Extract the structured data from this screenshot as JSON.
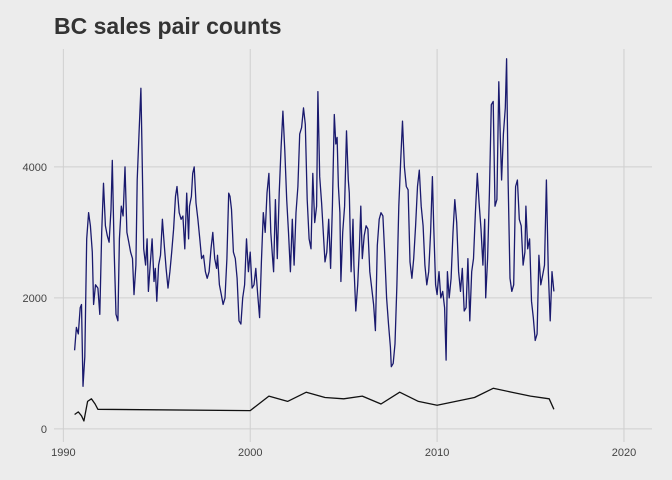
{
  "chart_data": {
    "type": "line",
    "title": "BC sales pair counts",
    "xlabel": "",
    "ylabel": "",
    "xlim": [
      1989.5,
      2021.5
    ],
    "ylim": [
      -200,
      5800
    ],
    "xticks": [
      1990,
      2000,
      2010,
      2020
    ],
    "yticks": [
      0,
      2000,
      4000
    ],
    "xtick_labels": [
      "1990",
      "2000",
      "2010",
      "2020"
    ],
    "ytick_labels": [
      "0",
      "2000",
      "4000"
    ],
    "grid": true,
    "legend": "none",
    "series": [
      {
        "color": "#1a1a6e",
        "points": [
          [
            1990.6,
            1200
          ],
          [
            1990.7,
            1550
          ],
          [
            1990.8,
            1450
          ],
          [
            1990.9,
            1850
          ],
          [
            1990.97,
            1900
          ],
          [
            1991.05,
            650
          ],
          [
            1991.15,
            1100
          ],
          [
            1991.25,
            2900
          ],
          [
            1991.35,
            3300
          ],
          [
            1991.45,
            3100
          ],
          [
            1991.55,
            2700
          ],
          [
            1991.62,
            1900
          ],
          [
            1991.72,
            2200
          ],
          [
            1991.85,
            2150
          ],
          [
            1991.95,
            1750
          ],
          [
            1992.05,
            3000
          ],
          [
            1992.15,
            3750
          ],
          [
            1992.25,
            3100
          ],
          [
            1992.35,
            2950
          ],
          [
            1992.45,
            2850
          ],
          [
            1992.55,
            3350
          ],
          [
            1992.62,
            4100
          ],
          [
            1992.72,
            2700
          ],
          [
            1992.82,
            1750
          ],
          [
            1992.92,
            1650
          ],
          [
            1993.0,
            2900
          ],
          [
            1993.1,
            3400
          ],
          [
            1993.2,
            3250
          ],
          [
            1993.3,
            4000
          ],
          [
            1993.4,
            3000
          ],
          [
            1993.5,
            2850
          ],
          [
            1993.6,
            2700
          ],
          [
            1993.7,
            2600
          ],
          [
            1993.78,
            2050
          ],
          [
            1993.88,
            2500
          ],
          [
            1993.95,
            3800
          ],
          [
            1994.05,
            4500
          ],
          [
            1994.15,
            5200
          ],
          [
            1994.2,
            4450
          ],
          [
            1994.3,
            2750
          ],
          [
            1994.4,
            2500
          ],
          [
            1994.48,
            2900
          ],
          [
            1994.55,
            2100
          ],
          [
            1994.65,
            2500
          ],
          [
            1994.75,
            2900
          ],
          [
            1994.85,
            2250
          ],
          [
            1994.92,
            2450
          ],
          [
            1995.0,
            1950
          ],
          [
            1995.1,
            2500
          ],
          [
            1995.2,
            2650
          ],
          [
            1995.3,
            3200
          ],
          [
            1995.4,
            2800
          ],
          [
            1995.5,
            2450
          ],
          [
            1995.6,
            2150
          ],
          [
            1995.7,
            2400
          ],
          [
            1995.8,
            2700
          ],
          [
            1995.9,
            3050
          ],
          [
            1996.0,
            3550
          ],
          [
            1996.08,
            3700
          ],
          [
            1996.2,
            3300
          ],
          [
            1996.3,
            3200
          ],
          [
            1996.4,
            3250
          ],
          [
            1996.5,
            2750
          ],
          [
            1996.6,
            3600
          ],
          [
            1996.7,
            2900
          ],
          [
            1996.75,
            3400
          ],
          [
            1996.85,
            3550
          ],
          [
            1996.92,
            3900
          ],
          [
            1997.0,
            4000
          ],
          [
            1997.1,
            3450
          ],
          [
            1997.2,
            3200
          ],
          [
            1997.3,
            2900
          ],
          [
            1997.4,
            2600
          ],
          [
            1997.5,
            2650
          ],
          [
            1997.6,
            2400
          ],
          [
            1997.7,
            2300
          ],
          [
            1997.8,
            2400
          ],
          [
            1997.9,
            2750
          ],
          [
            1998.0,
            3000
          ],
          [
            1998.1,
            2600
          ],
          [
            1998.2,
            2450
          ],
          [
            1998.25,
            2650
          ],
          [
            1998.35,
            2200
          ],
          [
            1998.45,
            2050
          ],
          [
            1998.55,
            1900
          ],
          [
            1998.65,
            2000
          ],
          [
            1998.75,
            2600
          ],
          [
            1998.85,
            3600
          ],
          [
            1998.92,
            3550
          ],
          [
            1999.0,
            3350
          ],
          [
            1999.1,
            2700
          ],
          [
            1999.2,
            2600
          ],
          [
            1999.3,
            2300
          ],
          [
            1999.4,
            1650
          ],
          [
            1999.5,
            1600
          ],
          [
            1999.6,
            2000
          ],
          [
            1999.7,
            2200
          ],
          [
            1999.8,
            2900
          ],
          [
            1999.9,
            2400
          ],
          [
            2000.0,
            2700
          ],
          [
            2000.1,
            2150
          ],
          [
            2000.2,
            2200
          ],
          [
            2000.3,
            2450
          ],
          [
            2000.4,
            2050
          ],
          [
            2000.5,
            1700
          ],
          [
            2000.6,
            2550
          ],
          [
            2000.7,
            3300
          ],
          [
            2000.8,
            3000
          ],
          [
            2000.9,
            3600
          ],
          [
            2001.0,
            3900
          ],
          [
            2001.1,
            3000
          ],
          [
            2001.2,
            2600
          ],
          [
            2001.25,
            2400
          ],
          [
            2001.35,
            3500
          ],
          [
            2001.45,
            2600
          ],
          [
            2001.55,
            3600
          ],
          [
            2001.65,
            4300
          ],
          [
            2001.75,
            4850
          ],
          [
            2001.85,
            4250
          ],
          [
            2001.95,
            3500
          ],
          [
            2002.05,
            3000
          ],
          [
            2002.15,
            2400
          ],
          [
            2002.25,
            3200
          ],
          [
            2002.35,
            2500
          ],
          [
            2002.45,
            3300
          ],
          [
            2002.55,
            3700
          ],
          [
            2002.65,
            4500
          ],
          [
            2002.75,
            4600
          ],
          [
            2002.85,
            4900
          ],
          [
            2002.95,
            4650
          ],
          [
            2003.05,
            3500
          ],
          [
            2003.15,
            2900
          ],
          [
            2003.25,
            2750
          ],
          [
            2003.35,
            3900
          ],
          [
            2003.45,
            3150
          ],
          [
            2003.55,
            3400
          ],
          [
            2003.62,
            5150
          ],
          [
            2003.72,
            3850
          ],
          [
            2003.82,
            3450
          ],
          [
            2003.9,
            3050
          ],
          [
            2004.0,
            2550
          ],
          [
            2004.1,
            2700
          ],
          [
            2004.2,
            3200
          ],
          [
            2004.3,
            2450
          ],
          [
            2004.4,
            3400
          ],
          [
            2004.5,
            4800
          ],
          [
            2004.58,
            4350
          ],
          [
            2004.65,
            4450
          ],
          [
            2004.72,
            3700
          ],
          [
            2004.8,
            3300
          ],
          [
            2004.85,
            2250
          ],
          [
            2004.95,
            3000
          ],
          [
            2005.05,
            3400
          ],
          [
            2005.15,
            4550
          ],
          [
            2005.25,
            3800
          ],
          [
            2005.3,
            3600
          ],
          [
            2005.4,
            2400
          ],
          [
            2005.5,
            3200
          ],
          [
            2005.55,
            2500
          ],
          [
            2005.65,
            1800
          ],
          [
            2005.75,
            2200
          ],
          [
            2005.85,
            2800
          ],
          [
            2005.92,
            3400
          ],
          [
            2006.0,
            2600
          ],
          [
            2006.1,
            2950
          ],
          [
            2006.2,
            3100
          ],
          [
            2006.3,
            3050
          ],
          [
            2006.4,
            2400
          ],
          [
            2006.5,
            2150
          ],
          [
            2006.6,
            1900
          ],
          [
            2006.7,
            1500
          ],
          [
            2006.8,
            2800
          ],
          [
            2006.9,
            3200
          ],
          [
            2007.0,
            3300
          ],
          [
            2007.1,
            3250
          ],
          [
            2007.2,
            2650
          ],
          [
            2007.3,
            2000
          ],
          [
            2007.4,
            1600
          ],
          [
            2007.5,
            1250
          ],
          [
            2007.55,
            950
          ],
          [
            2007.65,
            1000
          ],
          [
            2007.75,
            1300
          ],
          [
            2007.85,
            2200
          ],
          [
            2007.95,
            3400
          ],
          [
            2008.05,
            4100
          ],
          [
            2008.15,
            4700
          ],
          [
            2008.25,
            4000
          ],
          [
            2008.35,
            3700
          ],
          [
            2008.45,
            3650
          ],
          [
            2008.55,
            2550
          ],
          [
            2008.65,
            2300
          ],
          [
            2008.75,
            2600
          ],
          [
            2008.85,
            3100
          ],
          [
            2008.95,
            3700
          ],
          [
            2009.05,
            3950
          ],
          [
            2009.15,
            3400
          ],
          [
            2009.25,
            3100
          ],
          [
            2009.35,
            2500
          ],
          [
            2009.45,
            2200
          ],
          [
            2009.55,
            2400
          ],
          [
            2009.65,
            3000
          ],
          [
            2009.75,
            3850
          ],
          [
            2009.82,
            3100
          ],
          [
            2009.92,
            2200
          ],
          [
            2010.0,
            2050
          ],
          [
            2010.1,
            2400
          ],
          [
            2010.2,
            2000
          ],
          [
            2010.3,
            2100
          ],
          [
            2010.4,
            1850
          ],
          [
            2010.48,
            1050
          ],
          [
            2010.55,
            2400
          ],
          [
            2010.65,
            2000
          ],
          [
            2010.75,
            2300
          ],
          [
            2010.85,
            3000
          ],
          [
            2010.95,
            3500
          ],
          [
            2011.05,
            3150
          ],
          [
            2011.15,
            2400
          ],
          [
            2011.25,
            2100
          ],
          [
            2011.35,
            2450
          ],
          [
            2011.45,
            1800
          ],
          [
            2011.55,
            1850
          ],
          [
            2011.65,
            2600
          ],
          [
            2011.75,
            1650
          ],
          [
            2011.85,
            2400
          ],
          [
            2011.95,
            2600
          ],
          [
            2012.05,
            3300
          ],
          [
            2012.15,
            3900
          ],
          [
            2012.25,
            3450
          ],
          [
            2012.35,
            3050
          ],
          [
            2012.45,
            2500
          ],
          [
            2012.55,
            3200
          ],
          [
            2012.6,
            2000
          ],
          [
            2012.7,
            2600
          ],
          [
            2012.8,
            3600
          ],
          [
            2012.9,
            4950
          ],
          [
            2013.0,
            5000
          ],
          [
            2013.1,
            3400
          ],
          [
            2013.2,
            3500
          ],
          [
            2013.3,
            5300
          ],
          [
            2013.38,
            4450
          ],
          [
            2013.45,
            3800
          ],
          [
            2013.55,
            4500
          ],
          [
            2013.65,
            4900
          ],
          [
            2013.72,
            5650
          ],
          [
            2013.8,
            3800
          ],
          [
            2013.9,
            2300
          ],
          [
            2014.0,
            2100
          ],
          [
            2014.1,
            2200
          ],
          [
            2014.2,
            3700
          ],
          [
            2014.3,
            3800
          ],
          [
            2014.4,
            3200
          ],
          [
            2014.5,
            3100
          ],
          [
            2014.6,
            2500
          ],
          [
            2014.7,
            2700
          ],
          [
            2014.75,
            3400
          ],
          [
            2014.85,
            2750
          ],
          [
            2014.95,
            2900
          ],
          [
            2015.05,
            1950
          ],
          [
            2015.15,
            1700
          ],
          [
            2015.25,
            1350
          ],
          [
            2015.35,
            1450
          ],
          [
            2015.45,
            2650
          ],
          [
            2015.55,
            2200
          ],
          [
            2015.65,
            2350
          ],
          [
            2015.75,
            2500
          ],
          [
            2015.85,
            3800
          ],
          [
            2015.95,
            2400
          ],
          [
            2016.05,
            1650
          ],
          [
            2016.15,
            2400
          ],
          [
            2016.25,
            2100
          ]
        ]
      },
      {
        "color": "#111111",
        "points": [
          [
            1990.6,
            220
          ],
          [
            1990.8,
            260
          ],
          [
            1990.97,
            200
          ],
          [
            1991.1,
            120
          ],
          [
            1991.3,
            420
          ],
          [
            1991.5,
            460
          ],
          [
            1991.7,
            380
          ],
          [
            1991.85,
            300
          ],
          [
            2000.0,
            280
          ],
          [
            2001.0,
            500
          ],
          [
            2002.0,
            420
          ],
          [
            2003.0,
            560
          ],
          [
            2004.0,
            480
          ],
          [
            2005.0,
            460
          ],
          [
            2006.0,
            500
          ],
          [
            2007.0,
            380
          ],
          [
            2008.0,
            560
          ],
          [
            2009.0,
            420
          ],
          [
            2010.0,
            360
          ],
          [
            2011.0,
            420
          ],
          [
            2012.0,
            480
          ],
          [
            2013.0,
            620
          ],
          [
            2014.0,
            560
          ],
          [
            2015.0,
            500
          ],
          [
            2016.0,
            460
          ],
          [
            2016.25,
            300
          ]
        ]
      }
    ]
  }
}
